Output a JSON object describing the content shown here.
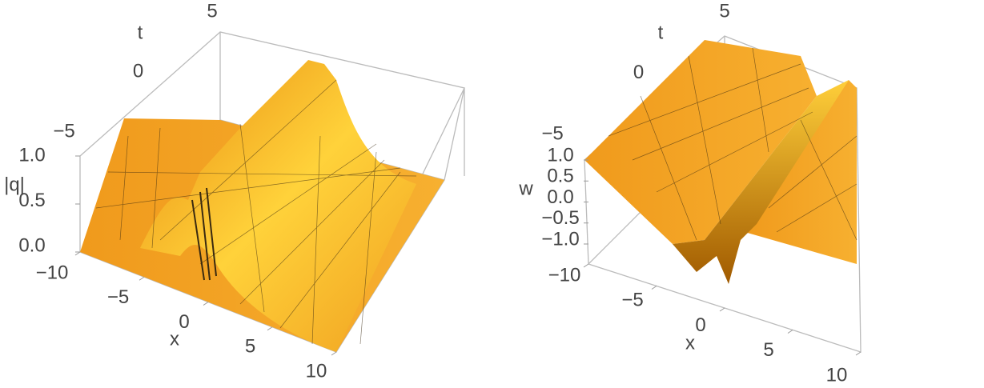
{
  "chart_data": [
    {
      "type": "surface3d",
      "xlabel": "x",
      "ylabel": "t",
      "zlabel": "|q|",
      "xlim": [
        -10,
        10
      ],
      "ylim": [
        -5,
        5
      ],
      "zlim": [
        0,
        1
      ],
      "xticks": [
        {
          "value": -10,
          "label": "−10"
        },
        {
          "value": -5,
          "label": "−5"
        },
        0,
        5,
        10
      ],
      "yticks": [
        {
          "value": -5,
          "label": "−5"
        },
        0,
        5
      ],
      "zticks": [
        {
          "value": 0,
          "label": "0.0"
        },
        {
          "value": 0.5,
          "label": "0.5"
        },
        {
          "value": 1,
          "label": "1.0"
        }
      ],
      "color": "#f5a623"
    },
    {
      "type": "surface3d",
      "xlabel": "x",
      "ylabel": "t",
      "zlabel": "w",
      "xlim": [
        -10,
        10
      ],
      "ylim": [
        -5,
        5
      ],
      "zlim": [
        -1,
        1
      ],
      "xticks": [
        {
          "value": -10,
          "label": "−10"
        },
        {
          "value": -5,
          "label": "−5"
        },
        0,
        5,
        10
      ],
      "yticks": [
        {
          "value": -5,
          "label": "−5"
        },
        0,
        5
      ],
      "zticks": [
        {
          "value": -1,
          "label": "−1.0"
        },
        {
          "value": -0.5,
          "label": "−0.5"
        },
        {
          "value": 0,
          "label": "0.0"
        },
        {
          "value": 0.5,
          "label": "0.5"
        },
        {
          "value": 1,
          "label": "1.0"
        }
      ],
      "color": "#f5a623"
    }
  ]
}
